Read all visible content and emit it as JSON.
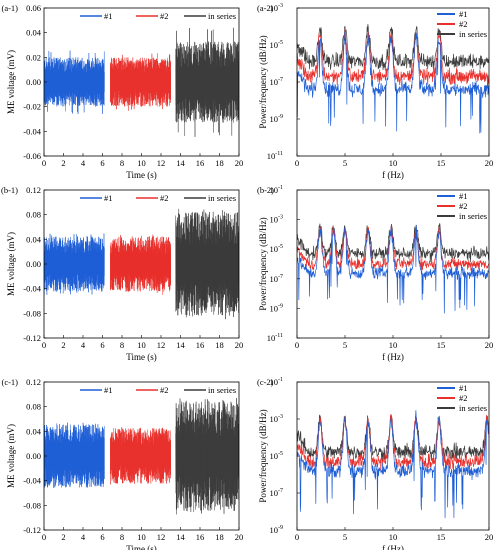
{
  "colors": {
    "s1": "#1f5fd6",
    "s2": "#e8302c",
    "s3": "#3c3c3c"
  },
  "chart_data": [
    {
      "id": "a1",
      "type": "line",
      "panel_label": "(a-1)",
      "xlabel": "Time (s)",
      "ylabel": "ME voltage (mV)",
      "xlim": [
        0,
        20
      ],
      "ylim": [
        -0.06,
        0.06
      ],
      "xticks": [
        0,
        2,
        4,
        6,
        8,
        10,
        12,
        14,
        16,
        18,
        20
      ],
      "yticks": [
        -0.06,
        -0.04,
        -0.02,
        0.0,
        0.02,
        0.04,
        0.06
      ],
      "ytick_labels": [
        "-0.06",
        "-0.04",
        "-0.02",
        "0.00",
        "0.02",
        "0.04",
        "0.06"
      ],
      "legend_position": "top",
      "series": [
        {
          "name": "#1",
          "x_range": [
            0,
            6.2
          ],
          "amplitude": 0.02,
          "peak": 0.026
        },
        {
          "name": "#2",
          "x_range": [
            6.8,
            13
          ],
          "amplitude": 0.02,
          "peak": 0.024
        },
        {
          "name": "in series",
          "x_range": [
            13.5,
            20
          ],
          "amplitude": 0.033,
          "peak": 0.045
        }
      ]
    },
    {
      "id": "a2",
      "type": "line",
      "panel_label": "(a-2)",
      "xlabel": "f (Hz)",
      "ylabel": "Power/frequency (dB/Hz)",
      "xlim": [
        0,
        20
      ],
      "yscale": "log",
      "ylim_exp": [
        -11,
        -3
      ],
      "xticks": [
        0,
        5,
        10,
        15,
        20
      ],
      "yticks_exp": [
        -11,
        -9,
        -7,
        -5,
        -3
      ],
      "legend_position": "top-right",
      "peaks_hz": [
        2.4,
        5,
        7.4,
        9.8,
        12.4,
        14.8
      ],
      "series": [
        {
          "name": "#1",
          "baseline_exp": -7.4
        },
        {
          "name": "#2",
          "baseline_exp": -6.7
        },
        {
          "name": "in series",
          "baseline_exp": -5.9
        }
      ]
    },
    {
      "id": "b1",
      "type": "line",
      "panel_label": "(b-1)",
      "xlabel": "Time (s)",
      "ylabel": "ME voltage (mV)",
      "xlim": [
        0,
        20
      ],
      "ylim": [
        -0.12,
        0.12
      ],
      "xticks": [
        0,
        2,
        4,
        6,
        8,
        10,
        12,
        14,
        16,
        18,
        20
      ],
      "yticks": [
        -0.12,
        -0.08,
        -0.04,
        0.0,
        0.04,
        0.08,
        0.12
      ],
      "ytick_labels": [
        "-0.12",
        "-0.08",
        "-0.04",
        "0.00",
        "0.04",
        "0.08",
        "0.12"
      ],
      "legend_position": "top",
      "series": [
        {
          "name": "#1",
          "x_range": [
            0,
            6.2
          ],
          "amplitude": 0.045,
          "peak": 0.05
        },
        {
          "name": "#2",
          "x_range": [
            6.8,
            13
          ],
          "amplitude": 0.045,
          "peak": 0.05
        },
        {
          "name": "in series",
          "x_range": [
            13.5,
            20
          ],
          "amplitude": 0.085,
          "peak": 0.09
        }
      ]
    },
    {
      "id": "b2",
      "type": "line",
      "panel_label": "(b-2)",
      "xlabel": "f (Hz)",
      "ylabel": "Power/frequency (dB/Hz)",
      "xlim": [
        0,
        20
      ],
      "yscale": "log",
      "ylim_exp": [
        -11,
        -1
      ],
      "xticks": [
        0,
        5,
        10,
        15,
        20
      ],
      "yticks_exp": [
        -11,
        -9,
        -7,
        -5,
        -3,
        -1
      ],
      "legend_position": "top-right",
      "peaks_hz": [
        2.4,
        3.8,
        5,
        7.4,
        9.8,
        12.4,
        14.8
      ],
      "series": [
        {
          "name": "#1",
          "baseline_exp": -6.6
        },
        {
          "name": "#2",
          "baseline_exp": -6.0
        },
        {
          "name": "in series",
          "baseline_exp": -5.3
        }
      ]
    },
    {
      "id": "c1",
      "type": "line",
      "panel_label": "(c-1)",
      "xlabel": "Time (s)",
      "ylabel": "ME voltage (mV)",
      "xlim": [
        0,
        20
      ],
      "ylim": [
        -0.12,
        0.12
      ],
      "xticks": [
        0,
        2,
        4,
        6,
        8,
        10,
        12,
        14,
        16,
        18,
        20
      ],
      "yticks": [
        -0.12,
        -0.08,
        -0.04,
        0.0,
        0.04,
        0.08,
        0.12
      ],
      "ytick_labels": [
        "-0.12",
        "-0.08",
        "-0.04",
        "0.00",
        "0.04",
        "0.08",
        "0.12"
      ],
      "legend_position": "top",
      "series": [
        {
          "name": "#1",
          "x_range": [
            0,
            6.2
          ],
          "amplitude": 0.052,
          "peak": 0.055
        },
        {
          "name": "#2",
          "x_range": [
            6.8,
            13
          ],
          "amplitude": 0.045,
          "peak": 0.048
        },
        {
          "name": "in series",
          "x_range": [
            13.5,
            20
          ],
          "amplitude": 0.09,
          "peak": 0.095
        }
      ]
    },
    {
      "id": "c2",
      "type": "line",
      "panel_label": "(c-2)",
      "xlabel": "f (Hz)",
      "ylabel": "Power/frequency (dB/Hz)",
      "xlim": [
        0,
        20
      ],
      "yscale": "log",
      "ylim_exp": [
        -9,
        -1
      ],
      "xticks": [
        0,
        5,
        10,
        15,
        20
      ],
      "yticks_exp": [
        -9,
        -7,
        -5,
        -3,
        -1
      ],
      "legend_position": "top-right",
      "peaks_hz": [
        2.4,
        5,
        7.4,
        9.8,
        12.4,
        14.8,
        19.8
      ],
      "series": [
        {
          "name": "#1",
          "baseline_exp": -5.8
        },
        {
          "name": "#2",
          "baseline_exp": -5.3
        },
        {
          "name": "in series",
          "baseline_exp": -4.8
        }
      ]
    }
  ]
}
